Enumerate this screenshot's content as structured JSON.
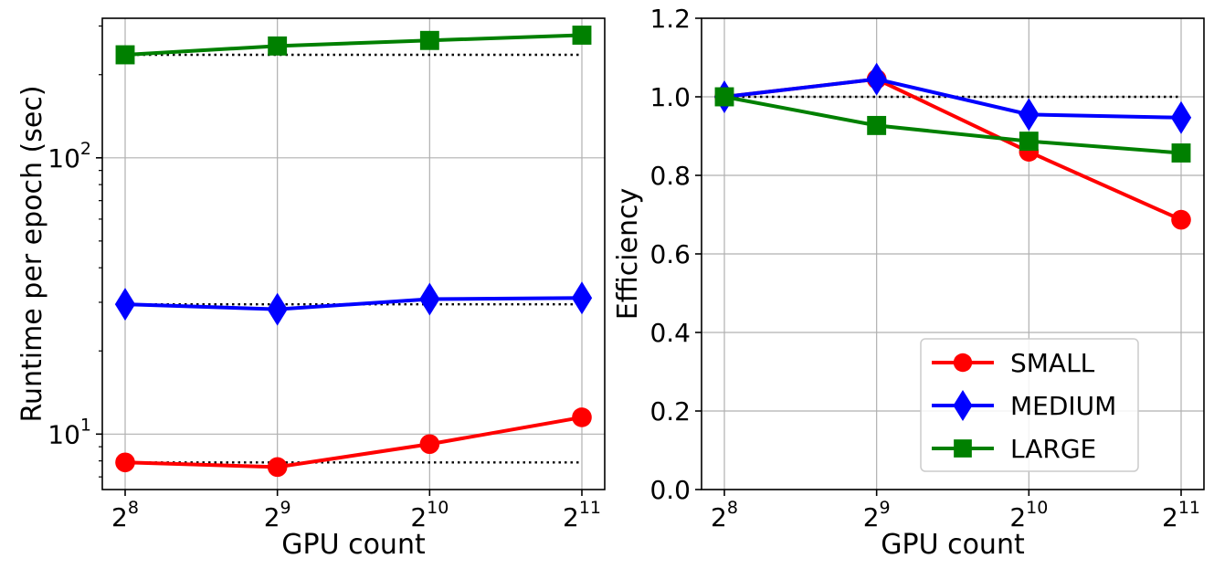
{
  "chart_data": [
    {
      "type": "line",
      "xlabel": "GPU count",
      "ylabel": "Runtime per epoch (sec)",
      "yscale": "log",
      "ylim": [
        6.3,
        320
      ],
      "x_values": [
        256,
        512,
        1024,
        2048
      ],
      "x_tick_labels": [
        {
          "base": "2",
          "exp": "8"
        },
        {
          "base": "2",
          "exp": "9"
        },
        {
          "base": "2",
          "exp": "10"
        },
        {
          "base": "2",
          "exp": "11"
        }
      ],
      "y_tick_labels": [
        {
          "value": 10,
          "base": "10",
          "exp": "1"
        },
        {
          "value": 100,
          "base": "10",
          "exp": "2"
        }
      ],
      "grid": true,
      "series": [
        {
          "name": "SMALL",
          "color": "#ff0000",
          "marker": "circle",
          "values": [
            7.9,
            7.6,
            9.2,
            11.5
          ],
          "baseline": 7.9
        },
        {
          "name": "MEDIUM",
          "color": "#0000ff",
          "marker": "diamond",
          "values": [
            29.5,
            28.3,
            30.8,
            31.1
          ],
          "baseline": 29.5
        },
        {
          "name": "LARGE",
          "color": "#008000",
          "marker": "square",
          "values": [
            236,
            254,
            266,
            278
          ],
          "baseline": 236
        }
      ]
    },
    {
      "type": "line",
      "xlabel": "GPU count",
      "ylabel": "Efficiency",
      "yscale": "linear",
      "ylim": [
        0.0,
        1.2
      ],
      "x_values": [
        256,
        512,
        1024,
        2048
      ],
      "x_tick_labels": [
        {
          "base": "2",
          "exp": "8"
        },
        {
          "base": "2",
          "exp": "9"
        },
        {
          "base": "2",
          "exp": "10"
        },
        {
          "base": "2",
          "exp": "11"
        }
      ],
      "y_ticks": [
        0.0,
        0.2,
        0.4,
        0.6,
        0.8,
        1.0,
        1.2
      ],
      "y_tick_labels": [
        "0.0",
        "0.2",
        "0.4",
        "0.6",
        "0.8",
        "1.0",
        "1.2"
      ],
      "grid": true,
      "legend_position": "lower-right",
      "reference_line": 1.0,
      "series": [
        {
          "name": "SMALL",
          "color": "#ff0000",
          "marker": "circle",
          "values": [
            1.0,
            1.045,
            0.86,
            0.687
          ]
        },
        {
          "name": "MEDIUM",
          "color": "#0000ff",
          "marker": "diamond",
          "values": [
            1.0,
            1.045,
            0.955,
            0.947
          ]
        },
        {
          "name": "LARGE",
          "color": "#008000",
          "marker": "square",
          "values": [
            1.0,
            0.927,
            0.887,
            0.857
          ]
        }
      ]
    }
  ]
}
